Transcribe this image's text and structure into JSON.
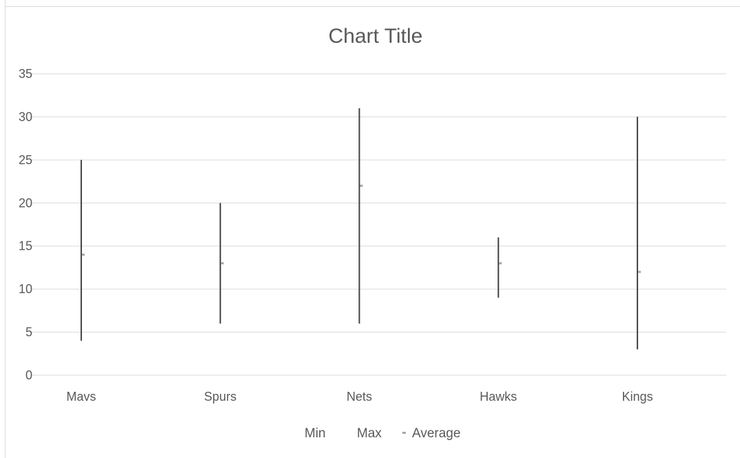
{
  "chart_data": {
    "type": "stock-hi-lo",
    "title": "Chart Title",
    "categories": [
      "Mavs",
      "Spurs",
      "Nets",
      "Hawks",
      "Kings"
    ],
    "series": [
      {
        "name": "Min",
        "values": [
          4,
          6,
          6,
          9,
          3
        ]
      },
      {
        "name": "Max",
        "values": [
          25,
          20,
          31,
          16,
          30
        ]
      },
      {
        "name": "Average",
        "values": [
          14,
          13,
          22,
          13,
          12
        ]
      }
    ],
    "ylim": [
      0,
      35
    ],
    "yticks": [
      0,
      5,
      10,
      15,
      20,
      25,
      30,
      35
    ],
    "grid": true,
    "legend_position": "bottom",
    "colors": {
      "range_line": "#404040",
      "average_marker": "#a6a6a6",
      "gridline": "#d9d9d9",
      "text": "#595959"
    }
  }
}
